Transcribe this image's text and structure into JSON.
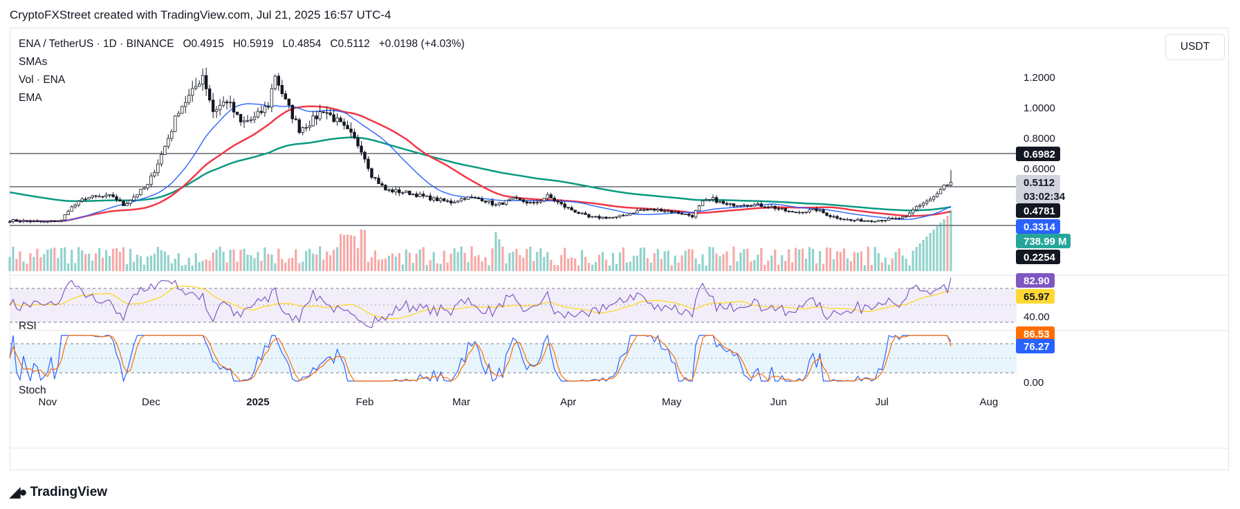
{
  "header": "CryptoFXStreet created with TradingView.com, Jul 21, 2025 16:57 UTC-4",
  "legend": {
    "symbol": "ENA / TetherUS · 1D · BINANCE",
    "open": "O0.4915",
    "high": "H0.5919",
    "low": "L0.4854",
    "close": "C0.5112",
    "change": "+0.0198 (+4.03%)",
    "indicators": [
      "SMAs",
      "Vol · ENA",
      "EMA"
    ]
  },
  "currency": "USDT",
  "footer_logo": "TradingView",
  "colors": {
    "up": "#26a69a",
    "down": "#ef5350",
    "sma50": "#2962ff",
    "sma100": "#f23645",
    "ema200": "#089981",
    "rsi": "#7e57c2",
    "rsi_ma": "#fdd835",
    "stoch_k": "#2962ff",
    "stoch_d": "#ff6d00"
  },
  "chart_data": [
    {
      "type": "candlestick",
      "title": "ENA / TetherUS · 1D · BINANCE",
      "x_ticks": [
        "Nov",
        "Dec",
        "2025",
        "Feb",
        "Mar",
        "Apr",
        "May",
        "Jun",
        "Jul",
        "Aug"
      ],
      "y_ticks": [
        "1.2000",
        "1.0000",
        "0.8000",
        "0.6000"
      ],
      "horizontal_levels": [
        0.6982,
        0.4781,
        0.3314
      ],
      "price_labels": [
        {
          "value": "0.6982",
          "style": "dark"
        },
        {
          "value": "0.5112",
          "style": "light"
        },
        {
          "value": "03:02:34",
          "style": "light"
        },
        {
          "value": "0.4781",
          "style": "dark"
        },
        {
          "value": "0.3314",
          "style": "blue"
        },
        {
          "value": "738.99 M",
          "style": "green"
        },
        {
          "value": "0.2254",
          "style": "dark"
        }
      ],
      "close_anchors": [
        {
          "date": "2024-10-21",
          "close": 0.26
        },
        {
          "date": "2024-10-31",
          "close": 0.25
        },
        {
          "date": "2024-11-05",
          "close": 0.26
        },
        {
          "date": "2024-11-07",
          "close": 0.33
        },
        {
          "date": "2024-11-12",
          "close": 0.41
        },
        {
          "date": "2024-11-20",
          "close": 0.42
        },
        {
          "date": "2024-11-23",
          "close": 0.36
        },
        {
          "date": "2024-11-30",
          "close": 0.49
        },
        {
          "date": "2024-12-04",
          "close": 0.69
        },
        {
          "date": "2024-12-07",
          "close": 0.86
        },
        {
          "date": "2024-12-09",
          "close": 0.99
        },
        {
          "date": "2024-12-13",
          "close": 1.1
        },
        {
          "date": "2024-12-16",
          "close": 1.22
        },
        {
          "date": "2024-12-19",
          "close": 0.98
        },
        {
          "date": "2024-12-23",
          "close": 1.05
        },
        {
          "date": "2024-12-27",
          "close": 0.9
        },
        {
          "date": "2024-12-31",
          "close": 0.93
        },
        {
          "date": "2025-01-04",
          "close": 1.02
        },
        {
          "date": "2025-01-06",
          "close": 1.22
        },
        {
          "date": "2025-01-09",
          "close": 1.04
        },
        {
          "date": "2025-01-13",
          "close": 0.86
        },
        {
          "date": "2025-01-17",
          "close": 0.92
        },
        {
          "date": "2025-01-20",
          "close": 0.99
        },
        {
          "date": "2025-01-24",
          "close": 0.91
        },
        {
          "date": "2025-01-28",
          "close": 0.82
        },
        {
          "date": "2025-01-31",
          "close": 0.73
        },
        {
          "date": "2025-02-03",
          "close": 0.56
        },
        {
          "date": "2025-02-07",
          "close": 0.46
        },
        {
          "date": "2025-02-14",
          "close": 0.44
        },
        {
          "date": "2025-02-21",
          "close": 0.4
        },
        {
          "date": "2025-02-26",
          "close": 0.38
        },
        {
          "date": "2025-03-02",
          "close": 0.41
        },
        {
          "date": "2025-03-07",
          "close": 0.4
        },
        {
          "date": "2025-03-11",
          "close": 0.36
        },
        {
          "date": "2025-03-16",
          "close": 0.4
        },
        {
          "date": "2025-03-22",
          "close": 0.37
        },
        {
          "date": "2025-03-26",
          "close": 0.42
        },
        {
          "date": "2025-03-31",
          "close": 0.35
        },
        {
          "date": "2025-04-07",
          "close": 0.28
        },
        {
          "date": "2025-04-15",
          "close": 0.28
        },
        {
          "date": "2025-04-22",
          "close": 0.33
        },
        {
          "date": "2025-04-28",
          "close": 0.33
        },
        {
          "date": "2025-05-03",
          "close": 0.31
        },
        {
          "date": "2025-05-07",
          "close": 0.29
        },
        {
          "date": "2025-05-10",
          "close": 0.38
        },
        {
          "date": "2025-05-13",
          "close": 0.4
        },
        {
          "date": "2025-05-17",
          "close": 0.36
        },
        {
          "date": "2025-05-22",
          "close": 0.37
        },
        {
          "date": "2025-05-30",
          "close": 0.35
        },
        {
          "date": "2025-06-05",
          "close": 0.31
        },
        {
          "date": "2025-06-12",
          "close": 0.33
        },
        {
          "date": "2025-06-16",
          "close": 0.29
        },
        {
          "date": "2025-06-22",
          "close": 0.26
        },
        {
          "date": "2025-06-28",
          "close": 0.26
        },
        {
          "date": "2025-07-05",
          "close": 0.27
        },
        {
          "date": "2025-07-08",
          "close": 0.28
        },
        {
          "date": "2025-07-11",
          "close": 0.35
        },
        {
          "date": "2025-07-15",
          "close": 0.4
        },
        {
          "date": "2025-07-17",
          "close": 0.43
        },
        {
          "date": "2025-07-19",
          "close": 0.49
        },
        {
          "date": "2025-07-20",
          "close": 0.4915
        },
        {
          "date": "2025-07-21",
          "close": 0.5112
        }
      ],
      "last_candle": {
        "date": "2025-07-21",
        "open": 0.4915,
        "high": 0.5919,
        "low": 0.4854,
        "close": 0.5112
      }
    },
    {
      "type": "line",
      "title": "RSI",
      "y_ticks": [
        "40.00"
      ],
      "value_labels": [
        "82.90",
        "65.97"
      ],
      "series": [
        {
          "name": "",
          "last": 82.9
        },
        {
          "name": "",
          "last": 65.97
        }
      ]
    },
    {
      "type": "line",
      "title": "Stoch",
      "y_ticks": [
        "0.00"
      ],
      "value_labels": [
        "86.53",
        "76.27"
      ],
      "series": [
        {
          "name": "",
          "last": 86.53
        },
        {
          "name": "",
          "last": 76.27
        }
      ]
    }
  ]
}
